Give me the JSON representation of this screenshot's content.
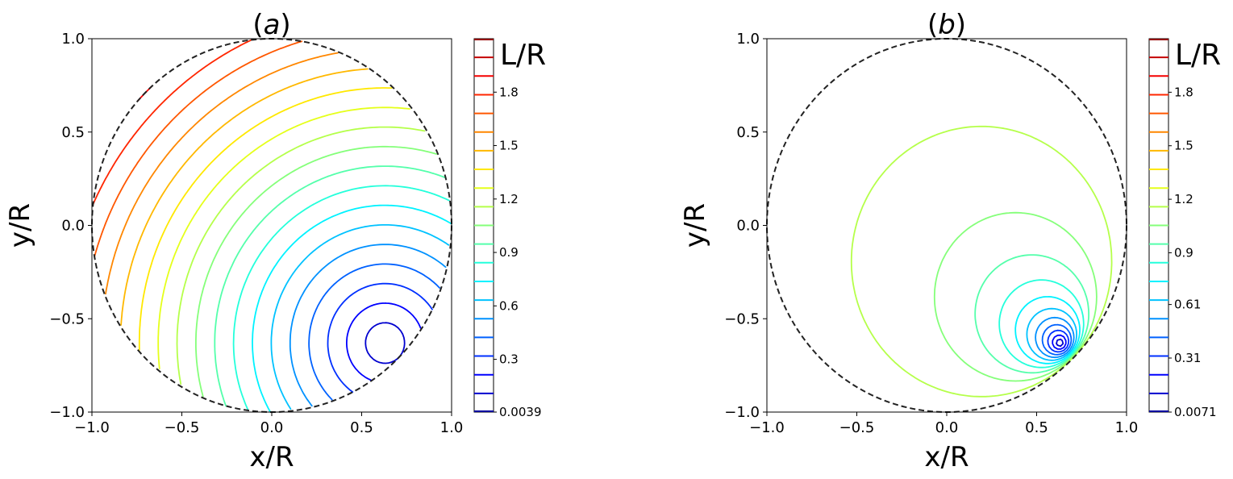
{
  "chart_data": [
    {
      "type": "contour",
      "panel": "a",
      "title": "(a)",
      "title_prefix": "(",
      "title_letter": "a",
      "title_suffix": ")",
      "xlabel": "x/R",
      "ylabel": "y/R",
      "xlim": [
        -1.0,
        1.0
      ],
      "ylim": [
        -1.0,
        1.0
      ],
      "xticks": [
        -1.0,
        -0.5,
        0.0,
        0.5,
        1.0
      ],
      "xtick_labels": [
        "−1.0",
        "−0.5",
        "0.0",
        "0.5",
        "1.0"
      ],
      "yticks": [
        -1.0,
        -0.5,
        0.0,
        0.5,
        1.0
      ],
      "ytick_labels": [
        "−1.0",
        "−0.5",
        "0.0",
        "0.5",
        "1.0"
      ],
      "boundary": "unit circle (dashed)",
      "source_point": [
        0.63,
        -0.63
      ],
      "field": "distance",
      "colorbar": {
        "label": "L/R",
        "colormap": "jet",
        "min": 0.0039,
        "max": 2.1,
        "n_levels": 21,
        "tick_values": [
          0.0039,
          0.3,
          0.6,
          0.9,
          1.2,
          1.5,
          1.8
        ],
        "tick_labels": [
          "0.0039",
          "0.3",
          "0.6",
          "0.9",
          "1.2",
          "1.5",
          "1.8"
        ]
      }
    },
    {
      "type": "contour",
      "panel": "b",
      "title": "(b)",
      "title_prefix": "(",
      "title_letter": "b",
      "title_suffix": ")",
      "xlabel": "x/R",
      "ylabel": "y/R",
      "xlim": [
        -1.0,
        1.0
      ],
      "ylim": [
        -1.0,
        1.0
      ],
      "xticks": [
        -1.0,
        -0.5,
        0.0,
        0.5,
        1.0
      ],
      "xtick_labels": [
        "−1.0",
        "−0.5",
        "0.0",
        "0.5",
        "1.0"
      ],
      "yticks": [
        -1.0,
        -0.5,
        0.0,
        0.5,
        1.0
      ],
      "ytick_labels": [
        "−1.0",
        "−0.5",
        "0.0",
        "0.5",
        "1.0"
      ],
      "boundary": "unit circle (dashed)",
      "source_point": [
        0.63,
        -0.63
      ],
      "field": "inversion",
      "colorbar": {
        "label": "L/R",
        "colormap": "jet",
        "min": 0.0071,
        "max": 2.1,
        "n_levels": 21,
        "tick_values": [
          0.0071,
          0.31,
          0.61,
          0.9,
          1.2,
          1.5,
          1.8
        ],
        "tick_labels": [
          "0.0071",
          "0.31",
          "0.61",
          "0.9",
          "1.2",
          "1.5",
          "1.8"
        ]
      }
    }
  ]
}
